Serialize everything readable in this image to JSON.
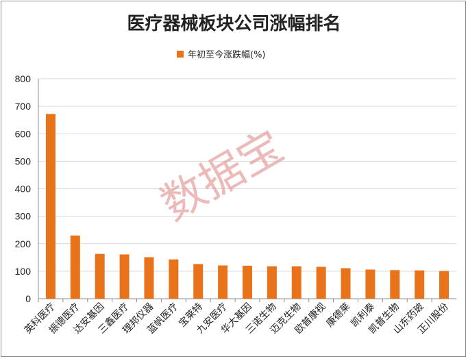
{
  "chart_data": {
    "type": "bar",
    "title": "医疗器械板块公司涨幅排名",
    "legend_position": "top",
    "series": [
      {
        "name": "年初至今涨跌幅(%)",
        "color": "#e8731a",
        "values": [
          672,
          230,
          163,
          161,
          151,
          143,
          126,
          121,
          120,
          118,
          118,
          116,
          111,
          106,
          104,
          103,
          101
        ]
      }
    ],
    "categories": [
      "英科医疗",
      "振德医疗",
      "达安基因",
      "三鑫医疗",
      "理邦仪器",
      "蓝帆医疗",
      "宝莱特",
      "九安医疗",
      "华大基因",
      "三诺生物",
      "迈克生物",
      "欧普康视",
      "康德莱",
      "凯利泰",
      "凯普生物",
      "山东药玻",
      "正川股份"
    ],
    "ylim": [
      0,
      800
    ],
    "yticks": [
      0,
      100,
      200,
      300,
      400,
      500,
      600,
      700,
      800
    ],
    "grid": true,
    "watermark": "数据宝"
  }
}
